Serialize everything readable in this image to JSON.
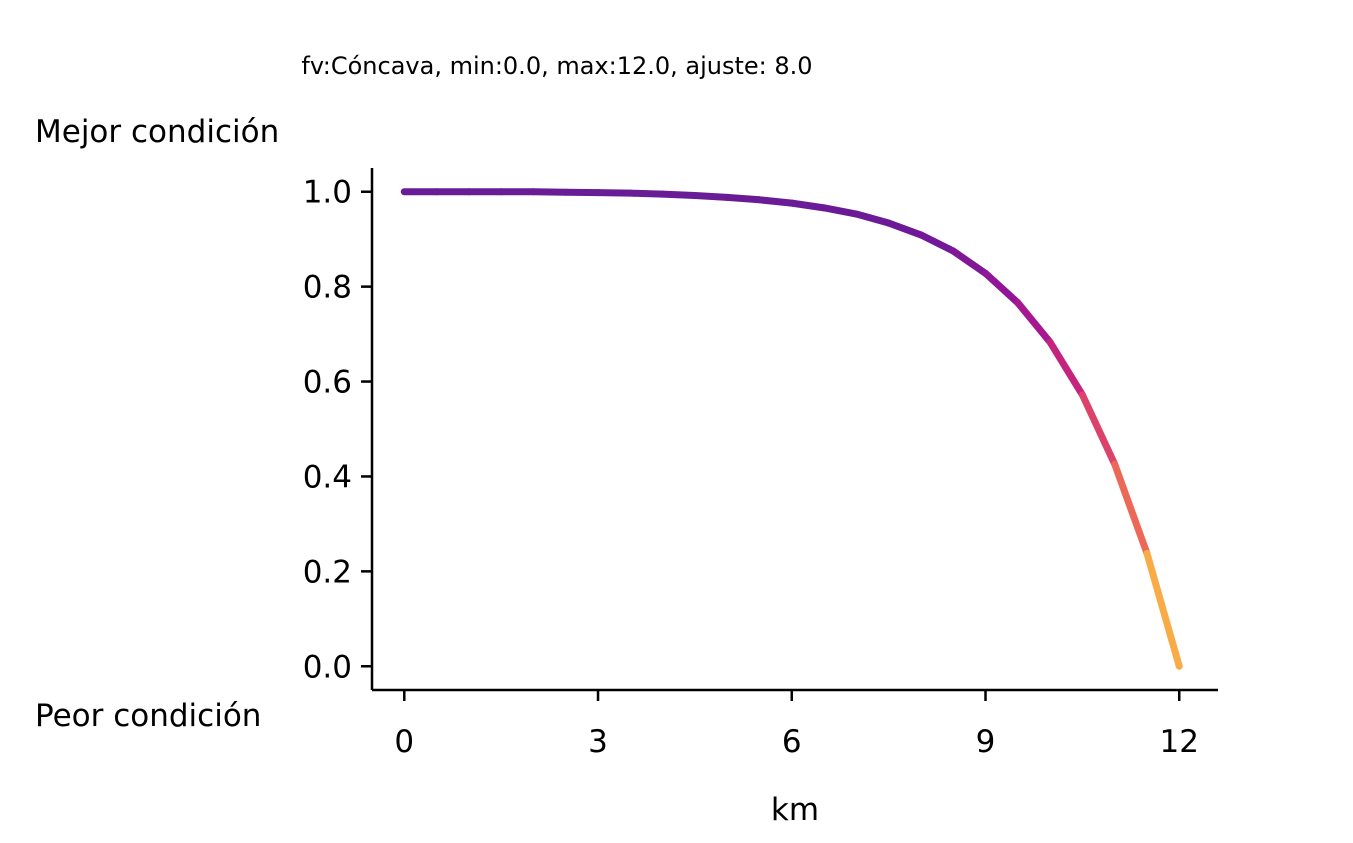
{
  "chart_data": {
    "type": "line",
    "title": "fv:Cóncava, min:0.0, max:12.0, ajuste: 8.0",
    "xlabel": "km",
    "ylabel": "",
    "y_top_label": "Mejor condición",
    "y_bottom_label": "Peor condición",
    "xlim": [
      -0.5,
      12.6
    ],
    "ylim": [
      -0.05,
      1.05
    ],
    "x_ticks": [
      0,
      3,
      6,
      9,
      12
    ],
    "x_tick_labels": [
      "0",
      "3",
      "6",
      "9",
      "12"
    ],
    "y_ticks": [
      0.0,
      0.2,
      0.4,
      0.6,
      0.8,
      1.0
    ],
    "y_tick_labels": [
      "0.0",
      "0.2",
      "0.4",
      "0.6",
      "0.8",
      "1.0"
    ],
    "grid": false,
    "legend": "none",
    "colormap": "plasma",
    "series": [
      {
        "x": [
          0,
          0.5,
          1,
          1.5,
          2,
          2.5,
          3,
          3.5,
          4,
          4.5,
          5,
          5.5,
          6,
          6.5,
          7,
          7.5,
          8,
          8.5,
          9,
          9.5,
          10,
          10.5,
          11,
          11.5,
          12
        ],
        "y": [
          1.0,
          1.0,
          1.0,
          1.0,
          1.0,
          0.999,
          0.998,
          0.997,
          0.995,
          0.992,
          0.988,
          0.983,
          0.976,
          0.966,
          0.953,
          0.934,
          0.909,
          0.875,
          0.828,
          0.766,
          0.683,
          0.572,
          0.426,
          0.238,
          0.0
        ]
      }
    ]
  }
}
